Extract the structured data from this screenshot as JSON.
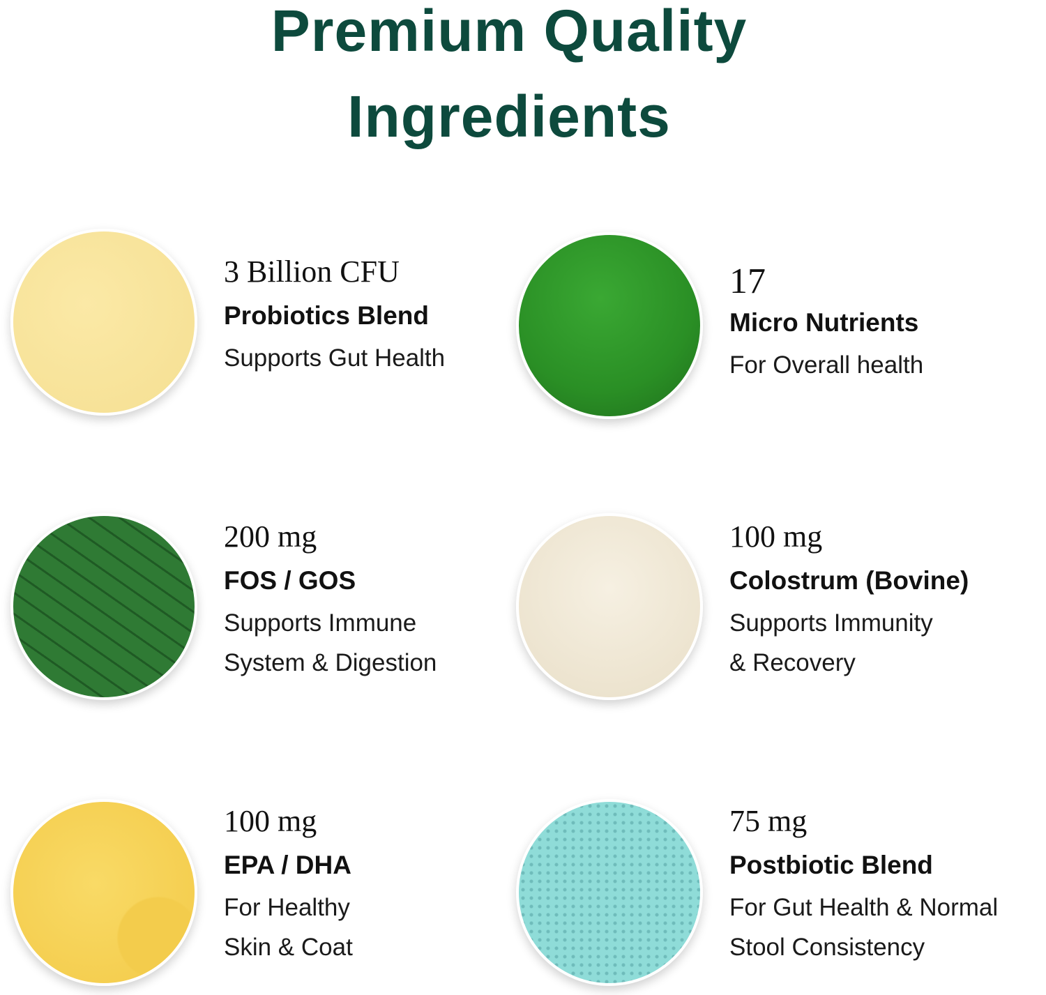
{
  "header": {
    "title_line1": "Premium Quality",
    "title_line2": "Ingredients",
    "title_color": "#0d4a3d"
  },
  "ingredients": [
    {
      "amount": "3 Billion CFU",
      "name": "Probiotics Blend",
      "desc1": "Supports Gut Health",
      "desc2": "",
      "image": "yellow-powder",
      "color": "#f8e49a"
    },
    {
      "amount": "17",
      "name": "Micro Nutrients",
      "desc1": "For Overall health",
      "desc2": "",
      "image": "green-powder",
      "color": "#2f9a2a"
    },
    {
      "amount": "200 mg",
      "name": "FOS / GOS",
      "desc1": "Supports Immune",
      "desc2": "System & Digestion",
      "image": "green-leaf-cells",
      "color": "#2f7a34"
    },
    {
      "amount": "100 mg",
      "name": "Colostrum (Bovine)",
      "desc1": "Supports Immunity",
      "desc2": "& Recovery",
      "image": "cream-powder",
      "color": "#efe6d2"
    },
    {
      "amount": "100 mg",
      "name": "EPA / DHA",
      "desc1": "For Healthy",
      "desc2": "Skin & Coat",
      "image": "yellow-oil",
      "color": "#f7d45a"
    },
    {
      "amount": "75 mg",
      "name": "Postbiotic Blend",
      "desc1": "For Gut Health & Normal",
      "desc2": "Stool Consistency",
      "image": "teal-microscope-cells",
      "color": "#8fdcd8"
    }
  ]
}
